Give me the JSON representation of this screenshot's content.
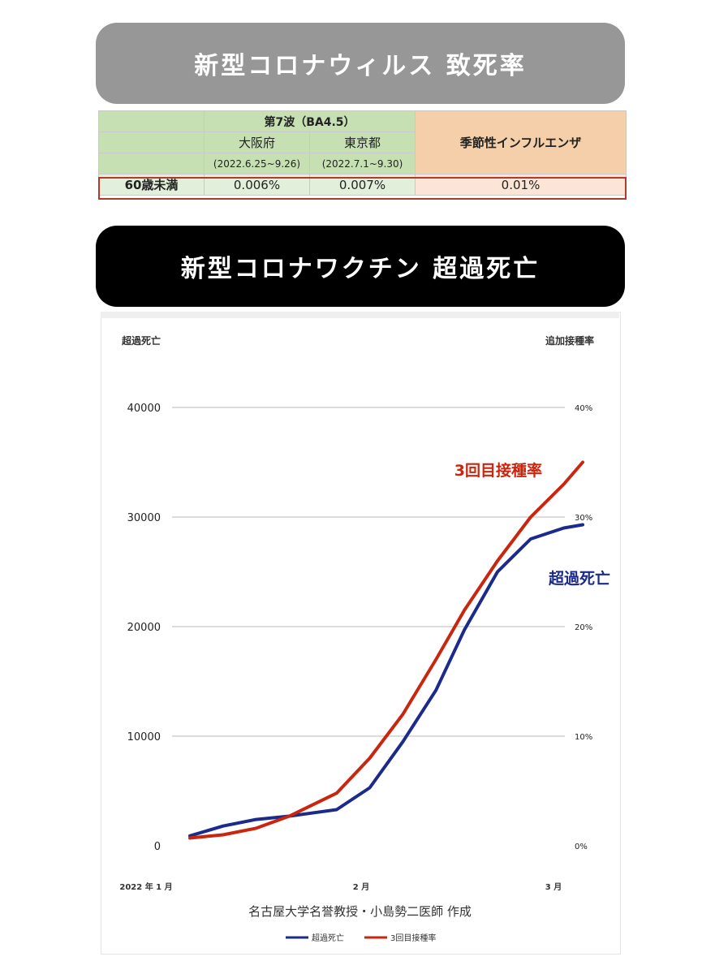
{
  "banners": {
    "fatality_title": "新型コロナウィルス 致死率",
    "vaccine_title": "新型コロナワクチン 超過死亡"
  },
  "table": {
    "wave_header": "第7波（BA4.5）",
    "flu_header": "季節性インフルエンザ",
    "regions": [
      {
        "name": "大阪府",
        "period": "(2022.6.25~9.26)",
        "value": "0.006%"
      },
      {
        "name": "東京都",
        "period": "(2022.7.1~9.30)",
        "value": "0.007%"
      }
    ],
    "row_label": "60歳未満",
    "flu_value": "0.01%"
  },
  "credit": "名古屋大学名誉教授・小島勢二医師 作成",
  "chart_data": {
    "type": "line",
    "ylabel_left": "超過死亡",
    "ylabel_right": "追加接種率",
    "x_ticks": [
      "2022 年 1 月",
      "2 月",
      "3 月"
    ],
    "y_left": {
      "range": [
        0,
        40000
      ],
      "ticks": [
        "0",
        "10000",
        "20000",
        "30000",
        "40000"
      ]
    },
    "y_right": {
      "range": [
        "0%",
        "40%"
      ],
      "ticks": [
        "0%",
        "10%",
        "20%",
        "30%",
        "40%"
      ]
    },
    "grid": true,
    "legend_position": "bottom",
    "series": [
      {
        "name": "超過死亡",
        "axis": "left",
        "color": "#1c2a8c",
        "annotation": "超過死亡",
        "x": [
          "2022-01-01",
          "2022-01-08",
          "2022-01-15",
          "2022-01-22",
          "2022-02-01",
          "2022-02-08",
          "2022-02-15",
          "2022-02-22",
          "2022-02-28",
          "2022-03-07",
          "2022-03-14",
          "2022-03-21",
          "2022-03-25"
        ],
        "values": [
          900,
          1800,
          2400,
          2700,
          3300,
          5300,
          9500,
          14200,
          19700,
          25000,
          28000,
          29000,
          29300
        ]
      },
      {
        "name": "3回目接種率",
        "axis": "right",
        "color": "#c8260e",
        "annotation": "3回目接種率",
        "x": [
          "2022-01-01",
          "2022-01-08",
          "2022-01-15",
          "2022-01-22",
          "2022-02-01",
          "2022-02-08",
          "2022-02-15",
          "2022-02-22",
          "2022-02-28",
          "2022-03-07",
          "2022-03-14",
          "2022-03-21",
          "2022-03-25"
        ],
        "values": [
          0.7,
          1.0,
          1.6,
          2.7,
          4.8,
          8.0,
          12.0,
          17.0,
          21.5,
          26.0,
          30.0,
          33.0,
          35.0
        ]
      }
    ]
  }
}
